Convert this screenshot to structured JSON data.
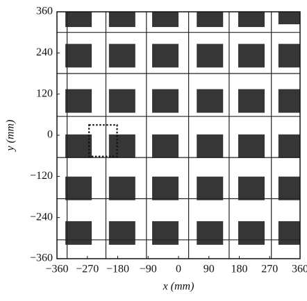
{
  "chart_data": {
    "type": "scatter",
    "xlabel": "x (mm)",
    "ylabel": "y (mm)",
    "xlim": [
      -360,
      360
    ],
    "ylim": [
      -360,
      360
    ],
    "xticks": [
      {
        "value": -360,
        "label": "−360"
      },
      {
        "value": -270,
        "label": "−270"
      },
      {
        "value": -180,
        "label": "−180"
      },
      {
        "value": -90,
        "label": "−90"
      },
      0,
      90,
      180,
      270,
      360
    ],
    "yticks": [
      {
        "value": -360,
        "label": "−360"
      },
      {
        "value": -240,
        "label": "−240"
      },
      {
        "value": -120,
        "label": "−120"
      },
      0,
      120,
      240,
      360
    ],
    "grid_lines": {
      "x": [
        -330,
        -215,
        -95,
        30,
        150,
        275
      ],
      "y": [
        300,
        180,
        55,
        -65,
        -185,
        -305
      ]
    },
    "color": "#1a1a1a",
    "x": [
      -296,
      -167,
      -39,
      93,
      216,
      335,
      -296,
      -167,
      -39,
      93,
      216,
      335,
      -296,
      -167,
      -39,
      93,
      216,
      335,
      -296,
      -167,
      -39,
      93,
      216,
      335,
      -296,
      -167,
      -39,
      93,
      216,
      335,
      -296,
      -167,
      -39,
      93,
      216,
      335
    ],
    "y": [
      350,
      350,
      350,
      350,
      350,
      358,
      232,
      232,
      232,
      232,
      232,
      232,
      100,
      100,
      100,
      100,
      100,
      100,
      -32,
      -32,
      -32,
      -32,
      -32,
      -32,
      -155,
      -155,
      -155,
      -155,
      -155,
      -155,
      -285,
      -285,
      -285,
      -285,
      -285,
      -285
    ],
    "highlight_box": {
      "x": [
        -265,
        -182
      ],
      "y": [
        -62,
        30
      ]
    }
  }
}
